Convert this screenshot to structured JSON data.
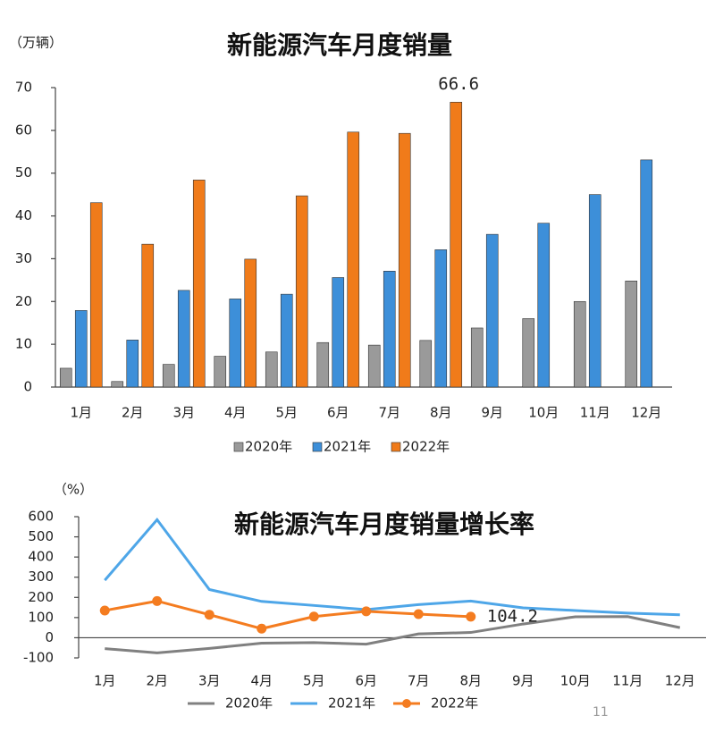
{
  "chart_data": [
    {
      "type": "bar",
      "title": "新能源汽车月度销量",
      "y_label": "（万辆）",
      "categories": [
        "1月",
        "2月",
        "3月",
        "4月",
        "5月",
        "6月",
        "7月",
        "8月",
        "9月",
        "10月",
        "11月",
        "12月"
      ],
      "series": [
        {
          "name": "2020年",
          "color": "#9a9a9a",
          "values": [
            4.4,
            1.3,
            5.3,
            7.2,
            8.2,
            10.4,
            9.8,
            10.9,
            13.8,
            16.0,
            20.0,
            24.8
          ]
        },
        {
          "name": "2021年",
          "color": "#3d8fd9",
          "values": [
            17.9,
            11.0,
            22.6,
            20.6,
            21.7,
            25.6,
            27.1,
            32.1,
            35.7,
            38.3,
            45.0,
            53.1
          ]
        },
        {
          "name": "2022年",
          "color": "#f07b1a",
          "values": [
            43.1,
            33.4,
            48.4,
            29.9,
            44.7,
            59.6,
            59.3,
            66.6,
            null,
            null,
            null,
            null
          ]
        }
      ],
      "ylim": [
        0,
        70
      ],
      "yticks": [
        0,
        10,
        20,
        30,
        40,
        50,
        60,
        70
      ],
      "annotation": "66.6"
    },
    {
      "type": "line",
      "title": "新能源汽车月度销量增长率",
      "y_label": "（%）",
      "categories": [
        "1月",
        "2月",
        "3月",
        "4月",
        "5月",
        "6月",
        "7月",
        "8月",
        "9月",
        "10月",
        "11月",
        "12月"
      ],
      "series": [
        {
          "name": "2020年",
          "color": "#808080",
          "values": [
            -54,
            -75,
            -53,
            -27,
            -24,
            -32,
            19,
            26,
            68,
            104,
            105,
            50
          ]
        },
        {
          "name": "2021年",
          "color": "#4ea6e8",
          "values": [
            285,
            585,
            239,
            180,
            160,
            139,
            164,
            182,
            148,
            135,
            122,
            114
          ]
        },
        {
          "name": "2022年",
          "color": "#f47c20",
          "markers": true,
          "values": [
            135,
            182,
            114,
            45,
            105,
            131,
            117,
            104.2,
            null,
            null,
            null,
            null
          ]
        }
      ],
      "ylim": [
        -100,
        600
      ],
      "yticks": [
        -100,
        0,
        100,
        200,
        300,
        400,
        500,
        600
      ],
      "annotation": "104.2"
    }
  ],
  "page_number": "11"
}
